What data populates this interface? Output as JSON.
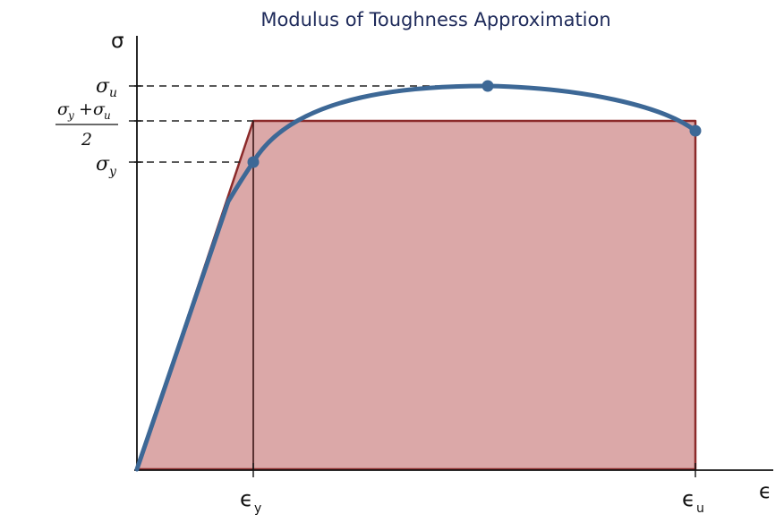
{
  "title": "Modulus of Toughness Approximation",
  "axes": {
    "y_label": "σ",
    "x_label": "ϵ"
  },
  "y_ticks": {
    "sigma_u": {
      "base": "σ",
      "sub": "u"
    },
    "average": {
      "num_a": "σ",
      "sub_a": "y",
      "plus": "+",
      "num_b": "σ",
      "sub_b": "u",
      "den": "2"
    },
    "sigma_y": {
      "base": "σ",
      "sub": "y"
    }
  },
  "x_ticks": {
    "eps_y": {
      "base": "ϵ",
      "sub": "y"
    },
    "eps_u": {
      "base": "ϵ",
      "sub": "u"
    }
  },
  "colors": {
    "area_fill": "#dba8a8",
    "area_edge": "#8b2a2a",
    "curve": "#3d6896",
    "axis": "#111111",
    "title": "#1e2a5a"
  }
}
